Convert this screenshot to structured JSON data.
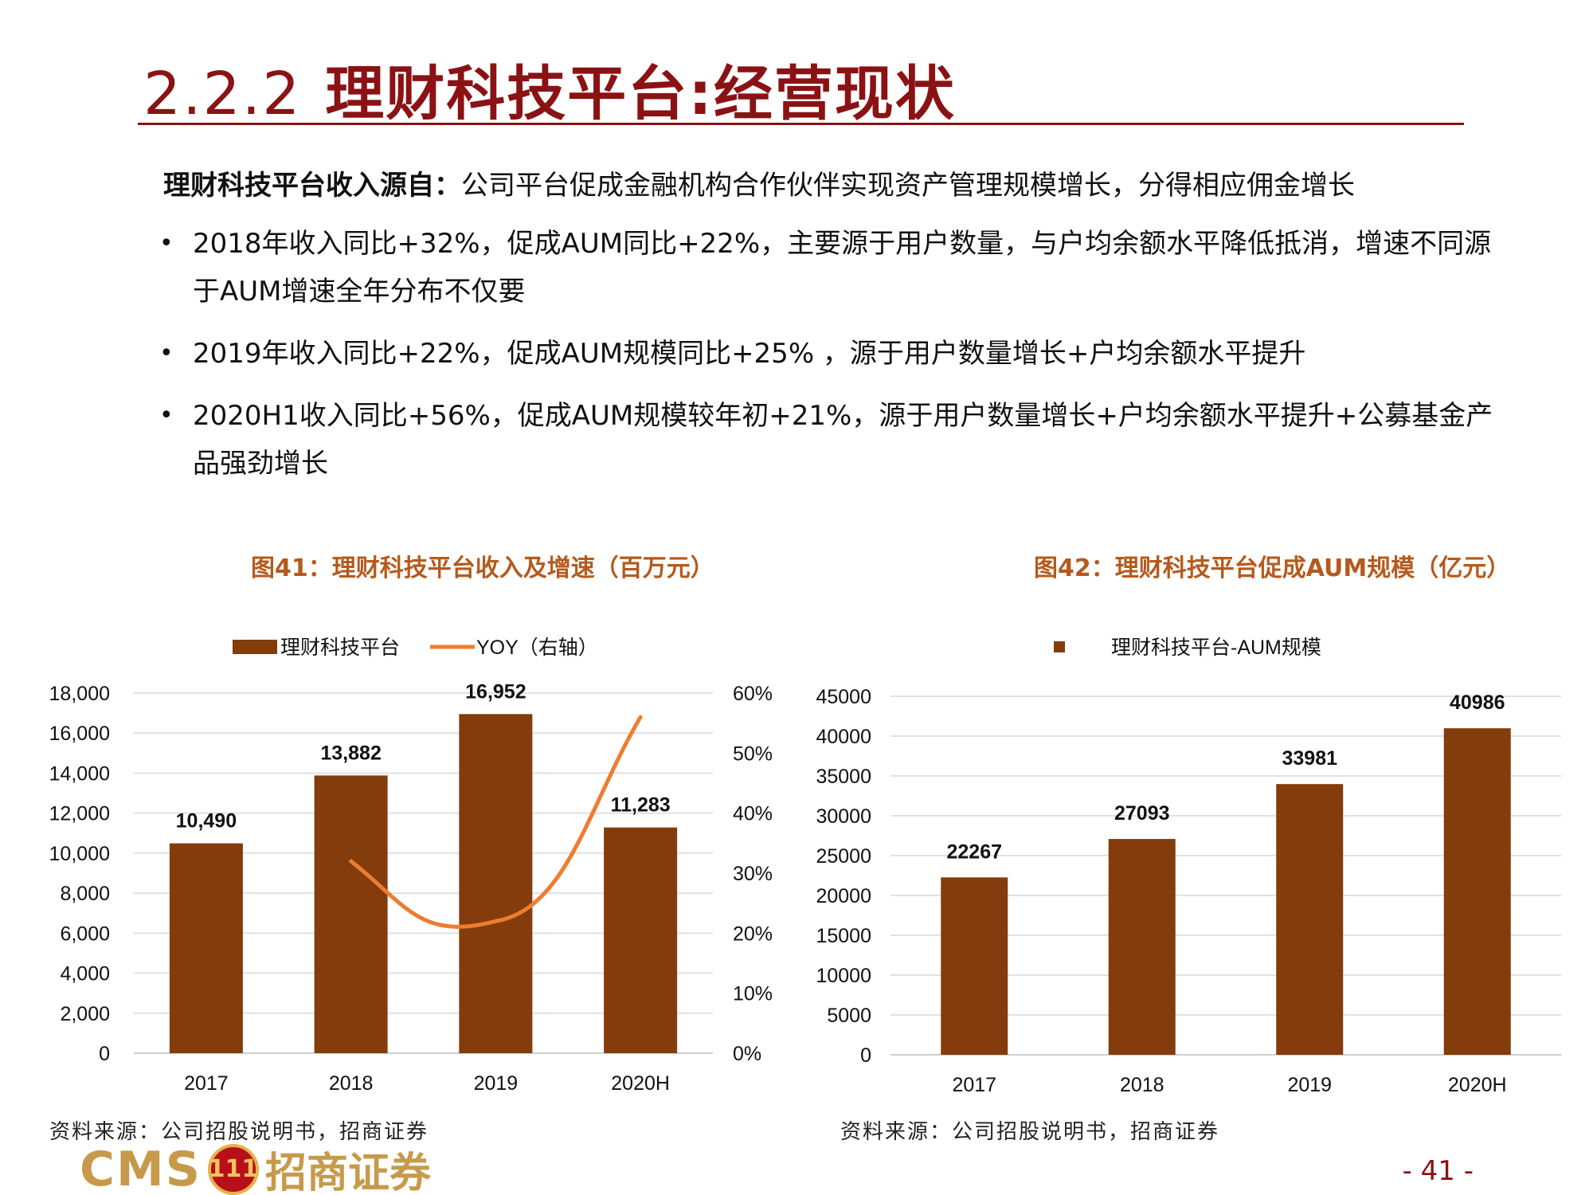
{
  "slide": {
    "title_num": "2.2.2",
    "title_text": "理财科技平台:经营现状",
    "intro_bold": "理财科技平台收入源自：",
    "intro_text": "公司平台促成金融机构合作伙伴实现资产管理规模增长，分得相应佣金增长",
    "bullets": [
      "2018年收入同比+32%，促成AUM同比+22%，主要源于用户数量，与户均余额水平降低抵消，增速不同源于AUM增速全年分布不仅要",
      "2019年收入同比+22%，促成AUM规模同比+25% ，源于用户数量增长+户均余额水平提升",
      "2020H1收入同比+56%，促成AUM规模较年初+21%，源于用户数量增长+户均余额水平提升+公募基金产品强劲增长"
    ],
    "page_number": "- 41 -"
  },
  "figures": {
    "fig41_title": "图41：理财科技平台收入及增速（百万元）",
    "fig42_title": "图42：理财科技平台促成AUM规模（亿元）",
    "fig41_source": "资料来源：公司招股说明书，招商证券",
    "fig42_source": "资料来源：公司招股说明书，招商证券"
  },
  "logo": {
    "latin": "CMS",
    "badge": "111",
    "chinese": "招商证券"
  },
  "colors": {
    "accent": "#8b1214",
    "bar": "#843c0c",
    "line": "#ed7d31",
    "fig_title": "#b55a1c",
    "grid": "#d9d9d9"
  },
  "chart_data": [
    {
      "type": "bar",
      "categories": [
        "2017",
        "2018",
        "2019",
        "2020H"
      ],
      "series": [
        {
          "name": "理财科技平台",
          "values": [
            10490,
            13882,
            16952,
            11283
          ],
          "labels": [
            "10,490",
            "13,882",
            "16,952",
            "11,283"
          ]
        },
        {
          "name": "YOY（右轴）",
          "type": "line",
          "axis": "right",
          "values": [
            null,
            0.32,
            0.22,
            0.56
          ]
        }
      ],
      "ylim": [
        0,
        18000
      ],
      "yticks": [
        "0",
        "2,000",
        "4,000",
        "6,000",
        "8,000",
        "10,000",
        "12,000",
        "14,000",
        "16,000",
        "18,000"
      ],
      "y2lim": [
        0,
        0.6
      ],
      "y2ticks": [
        "0%",
        "10%",
        "20%",
        "30%",
        "40%",
        "50%",
        "60%"
      ],
      "legend_position": "top",
      "grid": true
    },
    {
      "type": "bar",
      "categories": [
        "2017",
        "2018",
        "2019",
        "2020H"
      ],
      "series": [
        {
          "name": "理财科技平台-AUM规模",
          "values": [
            22267,
            27093,
            33981,
            40986
          ],
          "labels": [
            "22267",
            "27093",
            "33981",
            "40986"
          ]
        }
      ],
      "ylim": [
        0,
        45000
      ],
      "yticks": [
        "0",
        "5000",
        "10000",
        "15000",
        "20000",
        "25000",
        "30000",
        "35000",
        "40000",
        "45000"
      ],
      "legend_position": "top",
      "grid": true
    }
  ]
}
